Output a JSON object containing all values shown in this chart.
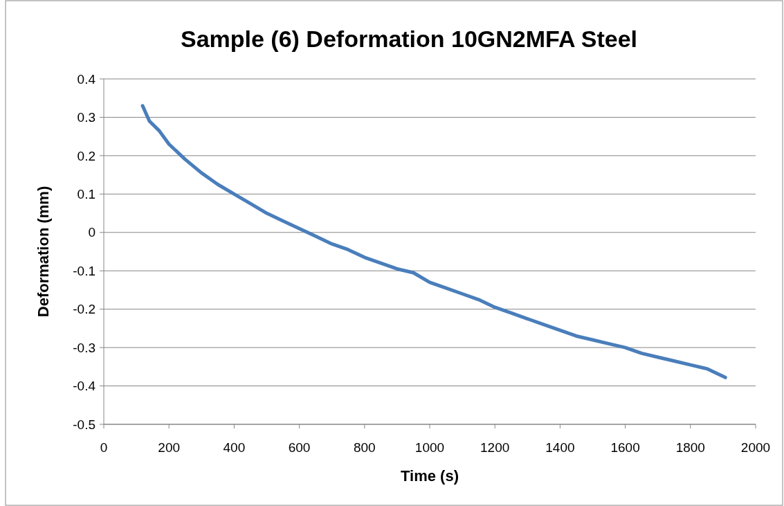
{
  "chart_data": {
    "type": "line",
    "title": "Sample (6) Deformation 10GN2MFA Steel",
    "xlabel": "Time (s)",
    "ylabel": "Deformation (mm)",
    "x": [
      119,
      140,
      170,
      200,
      250,
      300,
      350,
      400,
      450,
      500,
      550,
      600,
      650,
      700,
      750,
      800,
      850,
      900,
      950,
      1000,
      1050,
      1100,
      1150,
      1200,
      1250,
      1300,
      1350,
      1400,
      1450,
      1500,
      1550,
      1600,
      1650,
      1700,
      1750,
      1800,
      1850,
      1907
    ],
    "series": [
      {
        "color": "#4a7ebb",
        "values": [
          0.33,
          0.29,
          0.265,
          0.23,
          0.19,
          0.155,
          0.125,
          0.1,
          0.075,
          0.05,
          0.03,
          0.01,
          -0.01,
          -0.03,
          -0.045,
          -0.065,
          -0.08,
          -0.095,
          -0.105,
          -0.13,
          -0.145,
          -0.16,
          -0.175,
          -0.195,
          -0.21,
          -0.225,
          -0.24,
          -0.255,
          -0.27,
          -0.28,
          -0.29,
          -0.3,
          -0.315,
          -0.325,
          -0.335,
          -0.345,
          -0.355,
          -0.378
        ]
      }
    ],
    "xlim": [
      0,
      2000
    ],
    "xticks": [
      0,
      200,
      400,
      600,
      800,
      1000,
      1200,
      1400,
      1600,
      1800,
      2000
    ],
    "ylim": [
      -0.5,
      0.4
    ],
    "yticks": [
      -0.5,
      -0.4,
      -0.3,
      -0.2,
      -0.1,
      0,
      0.1,
      0.2,
      0.3,
      0.4
    ],
    "grid": "y",
    "marker": "none",
    "line_style": "solid"
  }
}
